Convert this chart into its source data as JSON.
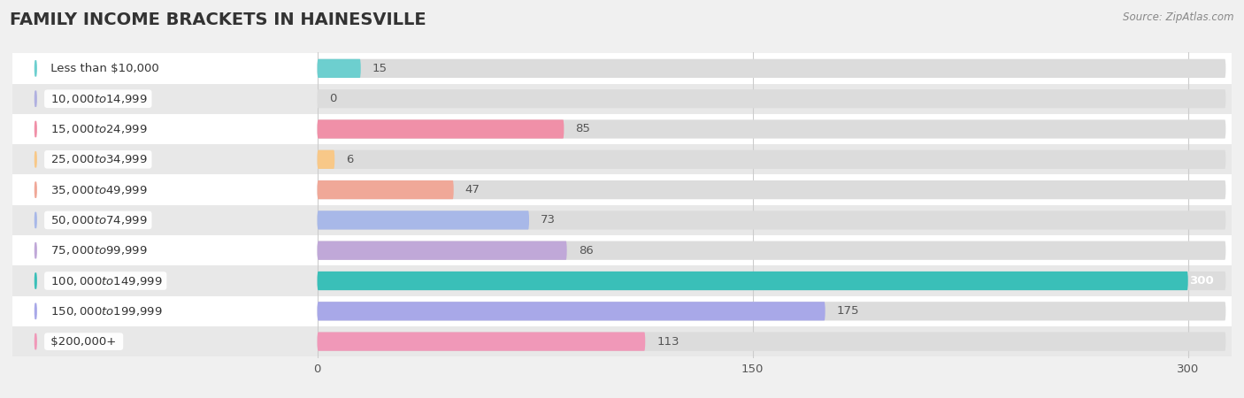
{
  "title": "FAMILY INCOME BRACKETS IN HAINESVILLE",
  "source": "Source: ZipAtlas.com",
  "categories": [
    "Less than $10,000",
    "$10,000 to $14,999",
    "$15,000 to $24,999",
    "$25,000 to $34,999",
    "$35,000 to $49,999",
    "$50,000 to $74,999",
    "$75,000 to $99,999",
    "$100,000 to $149,999",
    "$150,000 to $199,999",
    "$200,000+"
  ],
  "values": [
    15,
    0,
    85,
    6,
    47,
    73,
    86,
    300,
    175,
    113
  ],
  "bar_colors": [
    "#6dcfcf",
    "#b0b0e0",
    "#f090a8",
    "#f8c888",
    "#f0a898",
    "#a8b8e8",
    "#c0a8d8",
    "#3abfb8",
    "#a8a8e8",
    "#f098b8"
  ],
  "xlim_left": -105,
  "xlim_right": 315,
  "xticks": [
    0,
    150,
    300
  ],
  "background_color": "#f0f0f0",
  "title_fontsize": 14,
  "bar_height": 0.62,
  "label_fontsize": 9.5,
  "value_fontsize": 9.5
}
